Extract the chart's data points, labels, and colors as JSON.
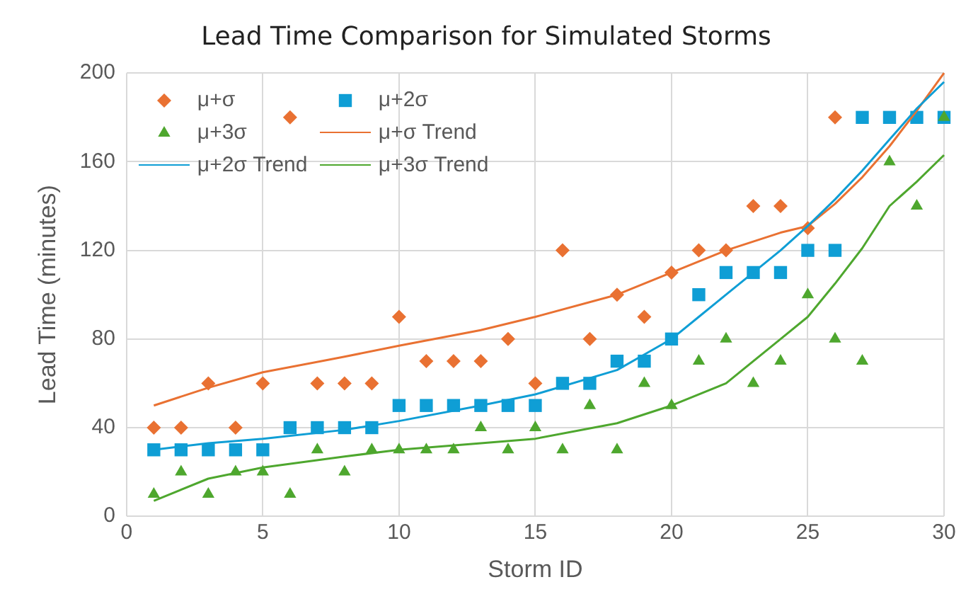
{
  "chart_data": {
    "type": "scatter",
    "title": "Lead Time Comparison for Simulated Storms",
    "xlabel": "Storm ID",
    "ylabel": "Lead Time (minutes)",
    "xlim": [
      0,
      30
    ],
    "xticks": [
      0,
      5,
      10,
      15,
      20,
      25,
      30
    ],
    "ylim": [
      0,
      200
    ],
    "yticks": [
      0,
      40,
      80,
      120,
      160,
      200
    ],
    "grid": true,
    "legend": "top left",
    "series": [
      {
        "name": "μ+σ",
        "marker": "diamond",
        "color": "#e97132",
        "x": [
          1,
          2,
          3,
          4,
          5,
          6,
          7,
          8,
          9,
          10,
          11,
          12,
          13,
          14,
          15,
          16,
          17,
          18,
          19,
          20,
          21,
          22,
          23,
          24,
          25,
          26
        ],
        "values": [
          40,
          40,
          60,
          40,
          60,
          180,
          60,
          60,
          60,
          90,
          70,
          70,
          70,
          80,
          60,
          120,
          80,
          100,
          90,
          110,
          120,
          120,
          140,
          140,
          130,
          180
        ]
      },
      {
        "name": "μ+2σ",
        "marker": "square",
        "color": "#0f9ed5",
        "x": [
          1,
          2,
          3,
          4,
          5,
          6,
          7,
          8,
          9,
          10,
          11,
          12,
          13,
          14,
          15,
          16,
          17,
          18,
          19,
          20,
          21,
          22,
          23,
          24,
          25,
          26,
          27,
          28,
          29,
          30
        ],
        "values": [
          30,
          30,
          30,
          30,
          30,
          40,
          40,
          40,
          40,
          50,
          50,
          50,
          50,
          50,
          50,
          60,
          60,
          70,
          70,
          80,
          100,
          110,
          110,
          110,
          120,
          120,
          180,
          180,
          180,
          180
        ]
      },
      {
        "name": "μ+3σ",
        "marker": "triangle",
        "color": "#4ea72e",
        "x": [
          1,
          2,
          3,
          4,
          5,
          6,
          7,
          8,
          9,
          10,
          11,
          12,
          13,
          14,
          15,
          16,
          17,
          18,
          19,
          20,
          21,
          22,
          23,
          24,
          25,
          26,
          27,
          28,
          29,
          30
        ],
        "values": [
          10,
          20,
          10,
          20,
          20,
          10,
          30,
          20,
          30,
          30,
          30,
          30,
          40,
          30,
          40,
          30,
          50,
          30,
          60,
          50,
          70,
          80,
          60,
          70,
          100,
          80,
          70,
          160,
          140,
          180
        ]
      },
      {
        "name": "μ+σ Trend",
        "type": "line",
        "marker": "none",
        "color": "#e97132",
        "x": [
          1,
          3,
          5,
          8,
          10,
          13,
          15,
          18,
          20,
          22,
          23,
          24,
          25,
          26,
          27,
          28,
          29,
          30
        ],
        "values": [
          50,
          58,
          65,
          72,
          77,
          84,
          90,
          100,
          110,
          120,
          124,
          128,
          131,
          141,
          153,
          167,
          183,
          200
        ]
      },
      {
        "name": "μ+2σ Trend",
        "type": "line",
        "marker": "none",
        "color": "#0f9ed5",
        "x": [
          1,
          3,
          5,
          8,
          10,
          13,
          15,
          18,
          19,
          20,
          21,
          22,
          23,
          24,
          25,
          26,
          27,
          28,
          29,
          30
        ],
        "values": [
          30,
          33,
          35,
          39,
          43,
          50,
          55,
          66,
          73,
          80,
          90,
          100,
          110,
          120,
          131,
          143,
          156,
          170,
          184,
          196
        ]
      },
      {
        "name": "μ+3σ Trend",
        "type": "line",
        "marker": "none",
        "color": "#4ea72e",
        "x": [
          1,
          3,
          5,
          8,
          10,
          13,
          15,
          18,
          20,
          22,
          24,
          25,
          26,
          27,
          28,
          29,
          30
        ],
        "values": [
          7,
          17,
          22,
          27,
          30,
          33,
          35,
          42,
          50,
          60,
          80,
          90,
          105,
          121,
          140,
          151,
          163
        ]
      }
    ]
  }
}
